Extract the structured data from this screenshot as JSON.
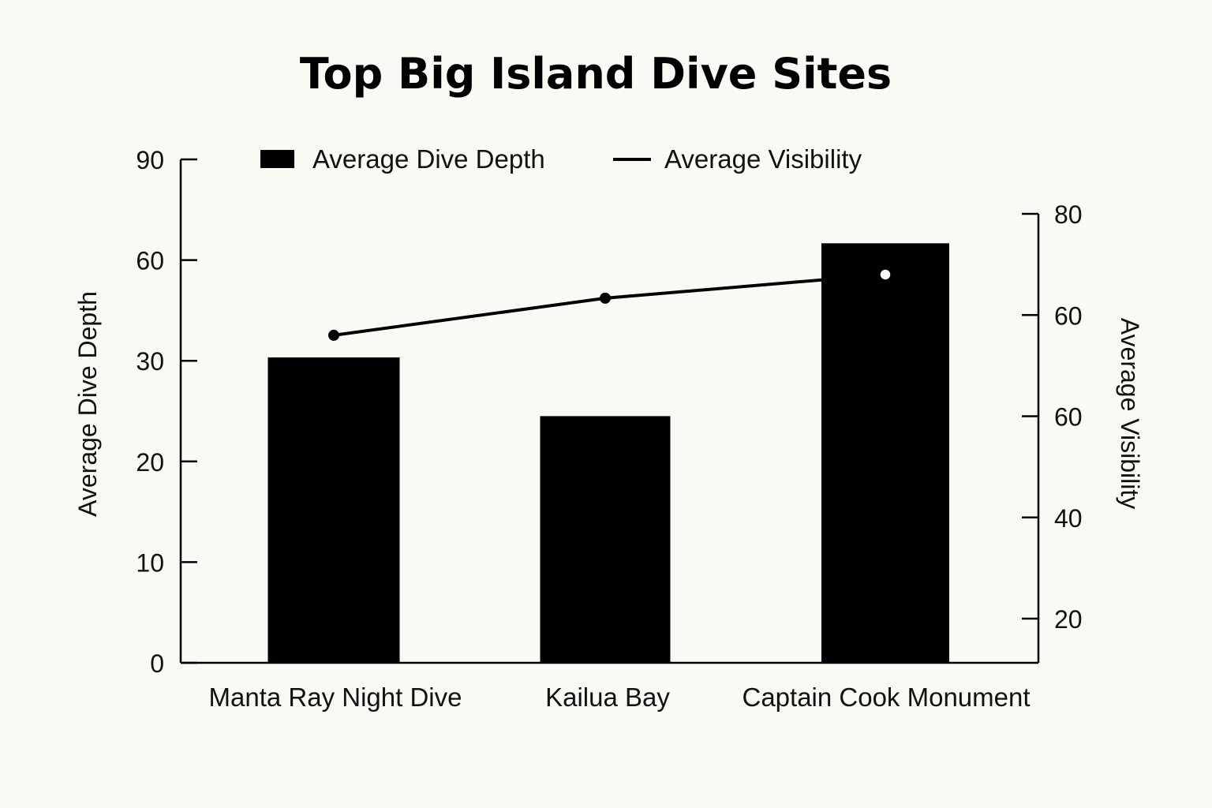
{
  "chart_data": {
    "type": "bar",
    "title": "Top Big Island Dive Sites",
    "categories": [
      "Manta Ray Night Dive",
      "Kailua Bay",
      "Captain Cook Monument"
    ],
    "series": [
      {
        "name": "Average Dive Depth",
        "type": "bar",
        "axis": "left",
        "values": [
          31,
          24.5,
          65
        ],
        "color": "#000000"
      },
      {
        "name": "Average Visibility",
        "type": "line",
        "axis": "right",
        "values": [
          62,
          67.5,
          71
        ],
        "color": "#000000"
      }
    ],
    "ylabel": "Average Dive Depth",
    "y2label": "Average Visibility",
    "yticks": [
      "0",
      "10",
      "20",
      "30",
      "60",
      "90"
    ],
    "y2ticks": [
      "20",
      "40",
      "60",
      "60",
      "80"
    ],
    "ylim": [
      0,
      90
    ],
    "y2lim": [
      20,
      80
    ],
    "legend": "top",
    "grid": false
  }
}
